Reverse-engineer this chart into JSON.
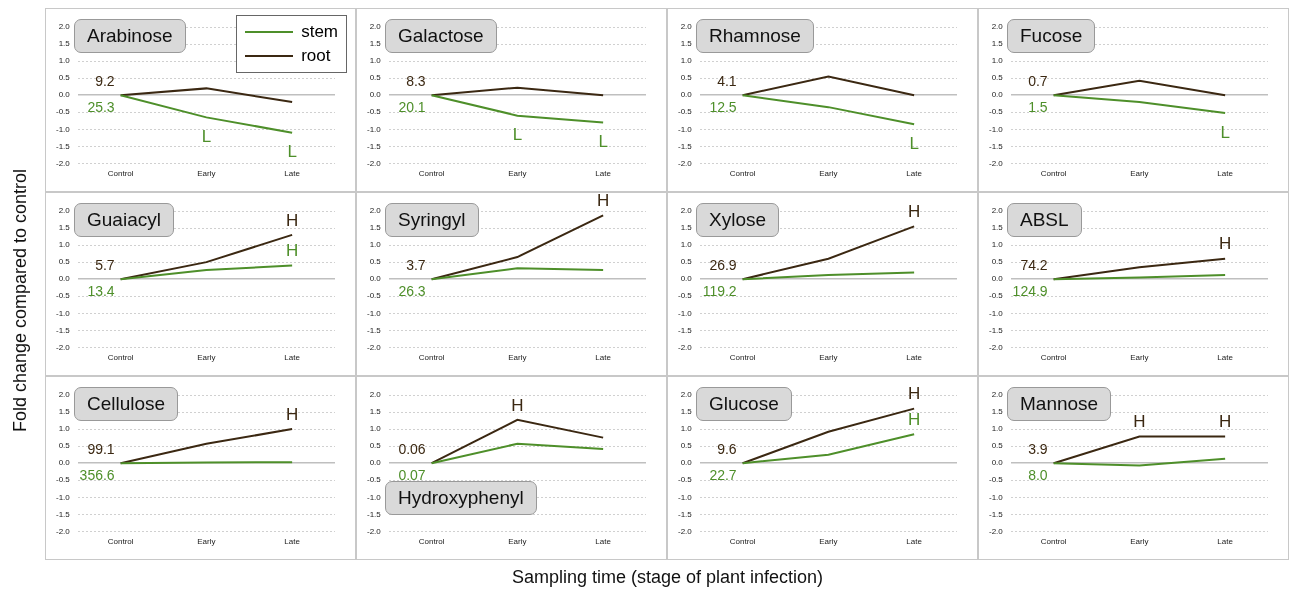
{
  "chart_data": [
    {
      "type": "line",
      "title": "Arabinose",
      "categories": [
        "Control",
        "Early",
        "Late"
      ],
      "ylim": [
        -2,
        2
      ],
      "yticks": [
        {
          "value": -2,
          "label": "-2.0"
        },
        {
          "value": -1.5,
          "label": "-1.5"
        },
        {
          "value": -1,
          "label": "-1.0"
        },
        {
          "value": -0.5,
          "label": "-0.5"
        },
        {
          "value": 0,
          "label": "0.0"
        },
        {
          "value": 0.5,
          "label": "0.5"
        },
        {
          "value": 1,
          "label": "1.0"
        },
        {
          "value": 1.5,
          "label": "1.5"
        },
        {
          "value": 2,
          "label": "2.0"
        }
      ],
      "grid": "y",
      "legend": "top right",
      "annotations": [
        {
          "text": "25.3",
          "x": "Control",
          "y": 0
        },
        {
          "text": "9.2",
          "x": "Control",
          "y": 0
        }
      ],
      "series": [
        {
          "name": "stem",
          "color": "#4e8f2a",
          "values": [
            0,
            -0.65,
            -1.1
          ],
          "value_labels": [
            null,
            "L",
            "L"
          ]
        },
        {
          "name": "root",
          "color": "#3b2812",
          "values": [
            0,
            0.2,
            -0.2
          ]
        }
      ]
    },
    {
      "type": "line",
      "title": "Galactose",
      "categories": [
        "Control",
        "Early",
        "Late"
      ],
      "ylim": [
        -2,
        2
      ],
      "yticks": [
        {
          "value": -2,
          "label": "-2.0"
        },
        {
          "value": -1.5,
          "label": "-1.5"
        },
        {
          "value": -1,
          "label": "-1.0"
        },
        {
          "value": -0.5,
          "label": "-0.5"
        },
        {
          "value": 0,
          "label": "0.0"
        },
        {
          "value": 0.5,
          "label": "0.5"
        },
        {
          "value": 1,
          "label": "1.0"
        },
        {
          "value": 1.5,
          "label": "1.5"
        },
        {
          "value": 2,
          "label": "2.0"
        }
      ],
      "grid": "y",
      "annotations": [
        {
          "text": "20.1",
          "x": "Control",
          "y": 0
        },
        {
          "text": "8.3",
          "x": "Control",
          "y": 0
        }
      ],
      "series": [
        {
          "color": "#4e8f2a",
          "values": [
            0,
            -0.6,
            -0.8
          ],
          "value_labels": [
            null,
            "L",
            "L"
          ]
        },
        {
          "color": "#3b2812",
          "values": [
            0,
            0.22,
            0
          ]
        }
      ]
    },
    {
      "type": "line",
      "title": "Rhamnose",
      "categories": [
        "Control",
        "Early",
        "Late"
      ],
      "ylim": [
        -2,
        2
      ],
      "yticks": [
        {
          "value": -2,
          "label": "-2.0"
        },
        {
          "value": -1.5,
          "label": "-1.5"
        },
        {
          "value": -1,
          "label": "-1.0"
        },
        {
          "value": -0.5,
          "label": "-0.5"
        },
        {
          "value": 0,
          "label": "0.0"
        },
        {
          "value": 0.5,
          "label": "0.5"
        },
        {
          "value": 1,
          "label": "1.0"
        },
        {
          "value": 1.5,
          "label": "1.5"
        },
        {
          "value": 2,
          "label": "2.0"
        }
      ],
      "grid": "y",
      "annotations": [
        {
          "text": "12.5",
          "x": "Control",
          "y": 0
        },
        {
          "text": "4.1",
          "x": "Control",
          "y": 0
        }
      ],
      "series": [
        {
          "color": "#4e8f2a",
          "values": [
            0,
            -0.35,
            -0.85
          ],
          "value_labels": [
            null,
            null,
            "L"
          ]
        },
        {
          "color": "#3b2812",
          "values": [
            0,
            0.55,
            0
          ]
        }
      ]
    },
    {
      "type": "line",
      "title": "Fucose",
      "categories": [
        "Control",
        "Early",
        "Late"
      ],
      "ylim": [
        -2,
        2
      ],
      "yticks": [
        {
          "value": -2,
          "label": "-2.0"
        },
        {
          "value": -1.5,
          "label": "-1.5"
        },
        {
          "value": -1,
          "label": "-1.0"
        },
        {
          "value": -0.5,
          "label": "-0.5"
        },
        {
          "value": 0,
          "label": "0.0"
        },
        {
          "value": 0.5,
          "label": "0.5"
        },
        {
          "value": 1,
          "label": "1.0"
        },
        {
          "value": 1.5,
          "label": "1.5"
        },
        {
          "value": 2,
          "label": "2.0"
        }
      ],
      "grid": "y",
      "annotations": [
        {
          "text": "1.5",
          "x": "Control",
          "y": 0
        },
        {
          "text": "0.7",
          "x": "Control",
          "y": 0
        }
      ],
      "series": [
        {
          "color": "#4e8f2a",
          "values": [
            0,
            -0.2,
            -0.52
          ],
          "value_labels": [
            null,
            null,
            "L"
          ]
        },
        {
          "color": "#3b2812",
          "values": [
            0,
            0.42,
            0
          ]
        }
      ]
    },
    {
      "type": "line",
      "title": "Guaiacyl",
      "ylabel": "Fold change compared to control",
      "categories": [
        "Control",
        "Early",
        "Late"
      ],
      "ylim": [
        -2,
        2
      ],
      "yticks": [
        {
          "value": -2,
          "label": "-2.0"
        },
        {
          "value": -1.5,
          "label": "-1.5"
        },
        {
          "value": -1,
          "label": "-1.0"
        },
        {
          "value": -0.5,
          "label": "-0.5"
        },
        {
          "value": 0,
          "label": "0.0"
        },
        {
          "value": 0.5,
          "label": "0.5"
        },
        {
          "value": 1,
          "label": "1.0"
        },
        {
          "value": 1.5,
          "label": "1.5"
        },
        {
          "value": 2,
          "label": "2.0"
        }
      ],
      "grid": "y",
      "annotations": [
        {
          "text": "13.4",
          "x": "Control",
          "y": 0
        },
        {
          "text": "5.7",
          "x": "Control",
          "y": 0
        }
      ],
      "series": [
        {
          "color": "#4e8f2a",
          "values": [
            0,
            0.27,
            0.4
          ],
          "value_labels": [
            null,
            null,
            "H"
          ]
        },
        {
          "color": "#3b2812",
          "values": [
            0,
            0.5,
            1.3
          ],
          "value_labels": [
            null,
            null,
            "H"
          ]
        }
      ]
    },
    {
      "type": "line",
      "title": "Syringyl",
      "categories": [
        "Control",
        "Early",
        "Late"
      ],
      "ylim": [
        -2,
        2
      ],
      "yticks": [
        {
          "value": -2,
          "label": "-2.0"
        },
        {
          "value": -1.5,
          "label": "-1.5"
        },
        {
          "value": -1,
          "label": "-1.0"
        },
        {
          "value": -0.5,
          "label": "-0.5"
        },
        {
          "value": 0,
          "label": "0.0"
        },
        {
          "value": 0.5,
          "label": "0.5"
        },
        {
          "value": 1,
          "label": "1.0"
        },
        {
          "value": 1.5,
          "label": "1.5"
        },
        {
          "value": 2,
          "label": "2.0"
        }
      ],
      "grid": "y",
      "annotations": [
        {
          "text": "26.3",
          "x": "Control",
          "y": 0
        },
        {
          "text": "3.7",
          "x": "Control",
          "y": 0
        }
      ],
      "series": [
        {
          "color": "#4e8f2a",
          "values": [
            0,
            0.32,
            0.27
          ]
        },
        {
          "color": "#3b2812",
          "values": [
            0,
            0.65,
            1.87
          ],
          "value_labels": [
            null,
            null,
            "H"
          ]
        }
      ]
    },
    {
      "type": "line",
      "title": "Xylose",
      "categories": [
        "Control",
        "Early",
        "Late"
      ],
      "ylim": [
        -2,
        2
      ],
      "yticks": [
        {
          "value": -2,
          "label": "-2.0"
        },
        {
          "value": -1.5,
          "label": "-1.5"
        },
        {
          "value": -1,
          "label": "-1.0"
        },
        {
          "value": -0.5,
          "label": "-0.5"
        },
        {
          "value": 0,
          "label": "0.0"
        },
        {
          "value": 0.5,
          "label": "0.5"
        },
        {
          "value": 1,
          "label": "1.0"
        },
        {
          "value": 1.5,
          "label": "1.5"
        },
        {
          "value": 2,
          "label": "2.0"
        }
      ],
      "grid": "y",
      "annotations": [
        {
          "text": "119.2",
          "x": "Control",
          "y": 0
        },
        {
          "text": "26.9",
          "x": "Control",
          "y": 0
        }
      ],
      "series": [
        {
          "color": "#4e8f2a",
          "values": [
            0,
            0.12,
            0.2
          ]
        },
        {
          "color": "#3b2812",
          "values": [
            0,
            0.6,
            1.55
          ],
          "value_labels": [
            null,
            null,
            "H"
          ]
        }
      ]
    },
    {
      "type": "line",
      "title": "ABSL",
      "categories": [
        "Control",
        "Early",
        "Late"
      ],
      "ylim": [
        -2,
        2
      ],
      "yticks": [
        {
          "value": -2,
          "label": "-2.0"
        },
        {
          "value": -1.5,
          "label": "-1.5"
        },
        {
          "value": -1,
          "label": "-1.0"
        },
        {
          "value": -0.5,
          "label": "-0.5"
        },
        {
          "value": 0,
          "label": "0.0"
        },
        {
          "value": 0.5,
          "label": "0.5"
        },
        {
          "value": 1,
          "label": "1.0"
        },
        {
          "value": 1.5,
          "label": "1.5"
        },
        {
          "value": 2,
          "label": "2.0"
        }
      ],
      "grid": "y",
      "annotations": [
        {
          "text": "124.9",
          "x": "Control",
          "y": 0
        },
        {
          "text": "74.2",
          "x": "Control",
          "y": 0
        }
      ],
      "series": [
        {
          "color": "#4e8f2a",
          "values": [
            0,
            0.05,
            0.12
          ]
        },
        {
          "color": "#3b2812",
          "values": [
            0,
            0.35,
            0.6
          ],
          "value_labels": [
            null,
            null,
            "H"
          ]
        }
      ]
    },
    {
      "type": "line",
      "title": "Cellulose",
      "categories": [
        "Control",
        "Early",
        "Late"
      ],
      "ylim": [
        -2,
        2
      ],
      "yticks": [
        {
          "value": -2,
          "label": "-2.0"
        },
        {
          "value": -1.5,
          "label": "-1.5"
        },
        {
          "value": -1,
          "label": "-1.0"
        },
        {
          "value": -0.5,
          "label": "-0.5"
        },
        {
          "value": 0,
          "label": "0.0"
        },
        {
          "value": 0.5,
          "label": "0.5"
        },
        {
          "value": 1,
          "label": "1.0"
        },
        {
          "value": 1.5,
          "label": "1.5"
        },
        {
          "value": 2,
          "label": "2.0"
        }
      ],
      "grid": "y",
      "annotations": [
        {
          "text": "356.6",
          "x": "Control",
          "y": 0
        },
        {
          "text": "99.1",
          "x": "Control",
          "y": 0
        }
      ],
      "series": [
        {
          "color": "#4e8f2a",
          "values": [
            0,
            0.02,
            0.03
          ]
        },
        {
          "color": "#3b2812",
          "values": [
            0,
            0.57,
            1.0
          ],
          "value_labels": [
            null,
            null,
            "H"
          ]
        }
      ]
    },
    {
      "type": "line",
      "title": "Hydroxyphenyl",
      "xlabel": "Sampling time (stage of plant infection)",
      "categories": [
        "Control",
        "Early",
        "Late"
      ],
      "ylim": [
        -2,
        2
      ],
      "yticks": [
        {
          "value": -2,
          "label": "-2.0"
        },
        {
          "value": -1.5,
          "label": "-1.5"
        },
        {
          "value": -1,
          "label": "-1.0"
        },
        {
          "value": -0.5,
          "label": "-0.5"
        },
        {
          "value": 0,
          "label": "0.0"
        },
        {
          "value": 0.5,
          "label": "0.5"
        },
        {
          "value": 1,
          "label": "1.0"
        },
        {
          "value": 1.5,
          "label": "1.5"
        },
        {
          "value": 2,
          "label": "2.0"
        }
      ],
      "grid": "y",
      "annotations": [
        {
          "text": "0.07",
          "x": "Control",
          "y": 0
        },
        {
          "text": "0.06",
          "x": "Control",
          "y": 0
        }
      ],
      "series": [
        {
          "color": "#4e8f2a",
          "values": [
            0,
            0.57,
            0.42
          ]
        },
        {
          "color": "#3b2812",
          "values": [
            0,
            1.27,
            0.75
          ],
          "value_labels": [
            null,
            "H",
            null
          ]
        }
      ]
    },
    {
      "type": "line",
      "title": "Glucose",
      "categories": [
        "Control",
        "Early",
        "Late"
      ],
      "ylim": [
        -2,
        2
      ],
      "yticks": [
        {
          "value": -2,
          "label": "-2.0"
        },
        {
          "value": -1.5,
          "label": "-1.5"
        },
        {
          "value": -1,
          "label": "-1.0"
        },
        {
          "value": -0.5,
          "label": "-0.5"
        },
        {
          "value": 0,
          "label": "0.0"
        },
        {
          "value": 0.5,
          "label": "0.5"
        },
        {
          "value": 1,
          "label": "1.0"
        },
        {
          "value": 1.5,
          "label": "1.5"
        },
        {
          "value": 2,
          "label": "2.0"
        }
      ],
      "grid": "y",
      "annotations": [
        {
          "text": "22.7",
          "x": "Control",
          "y": 0
        },
        {
          "text": "9.6",
          "x": "Control",
          "y": 0
        }
      ],
      "series": [
        {
          "color": "#4e8f2a",
          "values": [
            0,
            0.25,
            0.85
          ],
          "value_labels": [
            null,
            null,
            "H"
          ]
        },
        {
          "color": "#3b2812",
          "values": [
            0,
            0.92,
            1.6
          ],
          "value_labels": [
            null,
            null,
            "H"
          ]
        }
      ]
    },
    {
      "type": "line",
      "title": "Mannose",
      "categories": [
        "Control",
        "Early",
        "Late"
      ],
      "ylim": [
        -2,
        2
      ],
      "yticks": [
        {
          "value": -2,
          "label": "-2.0"
        },
        {
          "value": -1.5,
          "label": "-1.5"
        },
        {
          "value": -1,
          "label": "-1.0"
        },
        {
          "value": -0.5,
          "label": "-0.5"
        },
        {
          "value": 0,
          "label": "0.0"
        },
        {
          "value": 0.5,
          "label": "0.5"
        },
        {
          "value": 1,
          "label": "1.0"
        },
        {
          "value": 1.5,
          "label": "1.5"
        },
        {
          "value": 2,
          "label": "2.0"
        }
      ],
      "grid": "y",
      "annotations": [
        {
          "text": "8.0",
          "x": "Control",
          "y": 0
        },
        {
          "text": "3.9",
          "x": "Control",
          "y": 0
        }
      ],
      "series": [
        {
          "color": "#4e8f2a",
          "values": [
            0,
            -0.07,
            0.13
          ]
        },
        {
          "color": "#3b2812",
          "values": [
            0,
            0.78,
            0.78
          ],
          "value_labels": [
            null,
            "H",
            "H"
          ]
        }
      ]
    }
  ]
}
